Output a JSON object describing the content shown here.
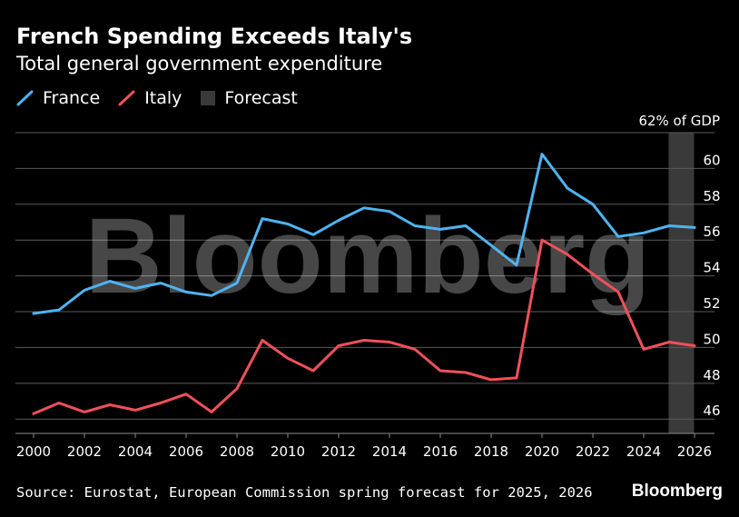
{
  "header": {
    "title": "French Spending Exceeds Italy's",
    "subtitle": "Total general government expenditure"
  },
  "legend": {
    "items": [
      {
        "label": "France",
        "color": "#4fb3f0",
        "kind": "line"
      },
      {
        "label": "Italy",
        "color": "#f0505a",
        "kind": "line"
      },
      {
        "label": "Forecast",
        "color": "#3a3a3a",
        "kind": "box"
      }
    ]
  },
  "footer": {
    "source": "Source: Eurostat, European Commission spring forecast for 2025, 2026",
    "brand": "Bloomberg"
  },
  "watermark": "Bloomberg",
  "chart_data": {
    "type": "line",
    "x": [
      2000,
      2001,
      2002,
      2003,
      2004,
      2005,
      2006,
      2007,
      2008,
      2009,
      2010,
      2011,
      2012,
      2013,
      2014,
      2015,
      2016,
      2017,
      2018,
      2019,
      2020,
      2021,
      2022,
      2023,
      2024,
      2025,
      2026
    ],
    "series": [
      {
        "name": "France",
        "color": "#4fb3f0",
        "values": [
          51.9,
          52.1,
          53.2,
          53.7,
          53.3,
          53.6,
          53.1,
          52.9,
          53.6,
          57.2,
          56.9,
          56.3,
          57.1,
          57.8,
          57.6,
          56.8,
          56.6,
          56.8,
          55.7,
          54.6,
          60.8,
          58.9,
          58.0,
          56.2,
          56.4,
          56.8,
          56.7
        ]
      },
      {
        "name": "Italy",
        "color": "#f0505a",
        "values": [
          46.3,
          46.9,
          46.4,
          46.8,
          46.5,
          46.9,
          47.4,
          46.4,
          47.7,
          50.4,
          49.4,
          48.7,
          50.1,
          50.4,
          50.3,
          49.9,
          48.7,
          48.6,
          48.2,
          48.3,
          56.0,
          55.2,
          54.1,
          53.1,
          49.9,
          50.3,
          50.1
        ]
      }
    ],
    "forecast_range": [
      2025,
      2026
    ],
    "ylim": [
      45.2,
      62
    ],
    "xlim": [
      2000,
      2026
    ],
    "yticks": [
      46,
      48,
      50,
      52,
      54,
      56,
      58,
      60
    ],
    "ytick_top_label": "62% of GDP",
    "xticks": [
      2000,
      2002,
      2004,
      2006,
      2008,
      2010,
      2012,
      2014,
      2016,
      2018,
      2020,
      2022,
      2024,
      2026
    ],
    "grid": true,
    "legend_position": "top-left"
  }
}
